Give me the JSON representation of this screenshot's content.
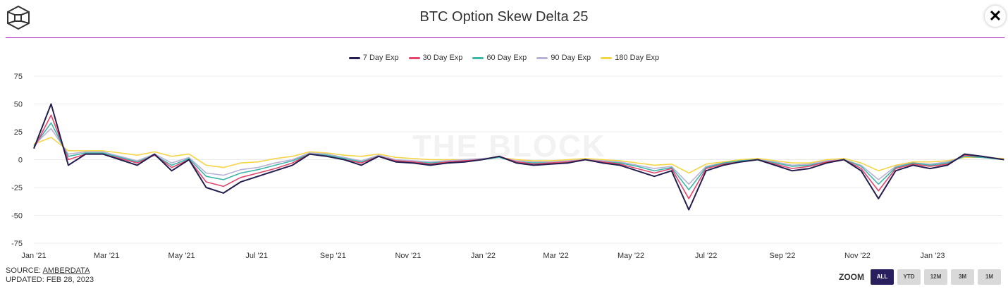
{
  "header": {
    "title": "BTC Option Skew Delta 25",
    "close_icon": "close-icon",
    "logo_icon": "the-block-cube-logo"
  },
  "watermark": "THE BLOCK",
  "footer": {
    "source_prefix": "SOURCE: ",
    "source": "AMBERDATA",
    "updated": "UPDATED: FEB 28, 2023"
  },
  "zoom": {
    "label": "ZOOM",
    "buttons": [
      "ALL",
      "YTD",
      "12M",
      "3M",
      "1M"
    ],
    "active": "ALL",
    "active_color": "#2a1f5e"
  },
  "chart_data": {
    "type": "line",
    "title": "BTC Option Skew Delta 25",
    "legend_placement": "top-center",
    "grid": true,
    "ylim": [
      -75,
      75
    ],
    "yticks": [
      75,
      50,
      25,
      0,
      -25,
      -50,
      -75
    ],
    "xticks": [
      {
        "date": "2021-01-01",
        "label": "Jan '21"
      },
      {
        "date": "2021-03-01",
        "label": "Mar '21"
      },
      {
        "date": "2021-05-01",
        "label": "May '21"
      },
      {
        "date": "2021-07-01",
        "label": "Jul '21"
      },
      {
        "date": "2021-09-01",
        "label": "Sep '21"
      },
      {
        "date": "2021-11-01",
        "label": "Nov '21"
      },
      {
        "date": "2022-01-01",
        "label": "Jan '22"
      },
      {
        "date": "2022-03-01",
        "label": "Mar '22"
      },
      {
        "date": "2022-05-01",
        "label": "May '22"
      },
      {
        "date": "2022-07-01",
        "label": "Jul '22"
      },
      {
        "date": "2022-09-01",
        "label": "Sep '22"
      },
      {
        "date": "2022-11-01",
        "label": "Nov '22"
      },
      {
        "date": "2023-01-01",
        "label": "Jan '23"
      }
    ],
    "x": [
      "2021-01-01",
      "2021-01-15",
      "2021-01-29",
      "2021-02-12",
      "2021-02-26",
      "2021-03-12",
      "2021-03-26",
      "2021-04-09",
      "2021-04-23",
      "2021-05-07",
      "2021-05-21",
      "2021-06-04",
      "2021-06-18",
      "2021-07-02",
      "2021-07-16",
      "2021-07-30",
      "2021-08-13",
      "2021-08-27",
      "2021-09-10",
      "2021-09-24",
      "2021-10-08",
      "2021-10-22",
      "2021-11-05",
      "2021-11-19",
      "2021-12-03",
      "2021-12-17",
      "2021-12-31",
      "2022-01-14",
      "2022-01-28",
      "2022-02-11",
      "2022-02-25",
      "2022-03-11",
      "2022-03-25",
      "2022-04-08",
      "2022-04-22",
      "2022-05-06",
      "2022-05-20",
      "2022-06-03",
      "2022-06-17",
      "2022-07-01",
      "2022-07-15",
      "2022-07-29",
      "2022-08-12",
      "2022-08-26",
      "2022-09-09",
      "2022-09-23",
      "2022-10-07",
      "2022-10-21",
      "2022-11-04",
      "2022-11-18",
      "2022-12-02",
      "2022-12-16",
      "2022-12-30",
      "2023-01-13",
      "2023-01-27",
      "2023-02-10",
      "2023-02-28"
    ],
    "series": [
      {
        "name": "180 Day Exp",
        "color": "#f5d547",
        "values": [
          14,
          20,
          8,
          8,
          8,
          6,
          4,
          7,
          3,
          5,
          -5,
          -7,
          -3,
          -2,
          1,
          3,
          7,
          6,
          4,
          3,
          5,
          2,
          1,
          0,
          0,
          0,
          1,
          2,
          0,
          -1,
          -1,
          0,
          1,
          0,
          -1,
          -3,
          -5,
          -4,
          -12,
          -4,
          -2,
          0,
          1,
          -1,
          -3,
          -3,
          0,
          1,
          -3,
          -10,
          -5,
          -2,
          -2,
          -1,
          2,
          2,
          1
        ]
      },
      {
        "name": "90 Day Exp",
        "color": "#b9b2d6",
        "values": [
          13,
          28,
          5,
          7,
          7,
          3,
          -1,
          5,
          -3,
          2,
          -12,
          -14,
          -9,
          -7,
          -3,
          0,
          6,
          5,
          2,
          -1,
          4,
          0,
          -1,
          -2,
          -1,
          0,
          1,
          2,
          -1,
          -2,
          -2,
          -1,
          0,
          -1,
          -2,
          -5,
          -8,
          -6,
          -22,
          -6,
          -3,
          -1,
          0,
          -2,
          -5,
          -4,
          -1,
          0,
          -5,
          -18,
          -6,
          -3,
          -4,
          -2,
          3,
          2,
          0
        ]
      },
      {
        "name": "60 Day Exp",
        "color": "#3fb6a8",
        "values": [
          12,
          33,
          3,
          6,
          6,
          2,
          -2,
          4,
          -5,
          1,
          -15,
          -18,
          -12,
          -9,
          -5,
          -1,
          5,
          4,
          1,
          -2,
          3,
          -1,
          -2,
          -3,
          -2,
          -1,
          0,
          2,
          -2,
          -3,
          -3,
          -2,
          0,
          -2,
          -3,
          -6,
          -10,
          -7,
          -27,
          -7,
          -3,
          -1,
          0,
          -3,
          -6,
          -5,
          -2,
          0,
          -6,
          -22,
          -7,
          -3,
          -5,
          -3,
          3,
          2,
          0
        ]
      },
      {
        "name": "30 Day Exp",
        "color": "#e2466d",
        "values": [
          10,
          40,
          0,
          5,
          5,
          1,
          -3,
          4,
          -7,
          0,
          -20,
          -24,
          -16,
          -12,
          -8,
          -3,
          5,
          3,
          0,
          -3,
          3,
          -1,
          -2,
          -4,
          -2,
          -1,
          0,
          3,
          -2,
          -4,
          -3,
          -2,
          0,
          -2,
          -4,
          -8,
          -12,
          -8,
          -35,
          -8,
          -4,
          -2,
          0,
          -4,
          -8,
          -6,
          -2,
          0,
          -8,
          -28,
          -8,
          -4,
          -6,
          -4,
          4,
          3,
          0
        ]
      },
      {
        "name": "7 Day Exp",
        "color": "#241f4e",
        "values": [
          10,
          50,
          -5,
          5,
          5,
          0,
          -5,
          5,
          -10,
          0,
          -25,
          -30,
          -20,
          -15,
          -10,
          -5,
          5,
          3,
          0,
          -5,
          3,
          -2,
          -3,
          -5,
          -3,
          -2,
          0,
          3,
          -3,
          -5,
          -4,
          -3,
          0,
          -3,
          -5,
          -10,
          -15,
          -10,
          -45,
          -10,
          -5,
          -2,
          0,
          -5,
          -10,
          -8,
          -3,
          0,
          -10,
          -35,
          -10,
          -5,
          -8,
          -5,
          5,
          3,
          0
        ]
      }
    ],
    "legend_order": [
      "7 Day Exp",
      "30 Day Exp",
      "60 Day Exp",
      "90 Day Exp",
      "180 Day Exp"
    ]
  }
}
